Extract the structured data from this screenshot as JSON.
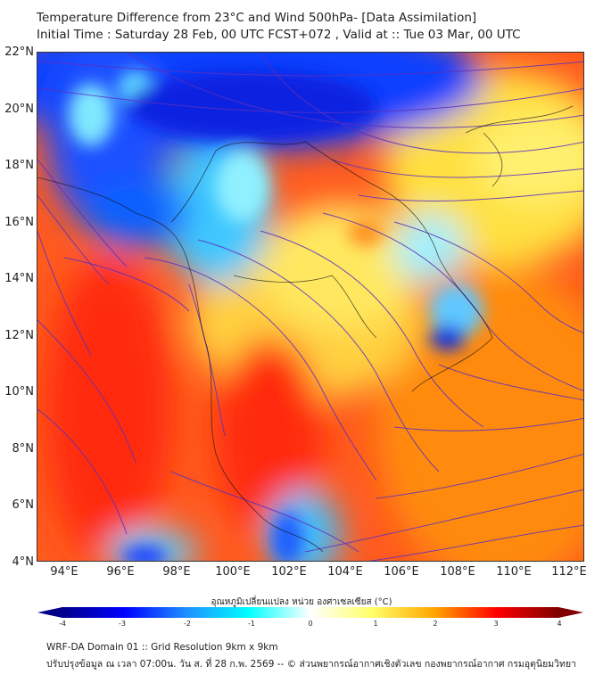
{
  "header": {
    "title": "Temperature Difference from 23°C and Wind 500hPa- [Data Assimilation]",
    "subtitle": "Initial Time : Saturday 28 Feb, 00 UTC FCST+072 , Valid at ::  Tue 03 Mar, 00 UTC"
  },
  "map": {
    "lat_labels": [
      "22°N",
      "20°N",
      "18°N",
      "16°N",
      "14°N",
      "12°N",
      "10°N",
      "8°N",
      "6°N",
      "4°N"
    ],
    "lon_labels": [
      "94°E",
      "96°E",
      "98°E",
      "100°E",
      "102°E",
      "104°E",
      "106°E",
      "108°E",
      "110°E",
      "112°E"
    ],
    "streamline_color": "#5a2fc0"
  },
  "colorbar": {
    "title": "อุณหภูมิเปลี่ยนแปลง หน่วย องศาเซลเซียส (°C)",
    "ticks": [
      "-4",
      "-3",
      "-2",
      "-1",
      "0",
      "1",
      "2",
      "3",
      "4"
    ],
    "colors": [
      "#00008b",
      "#0000ff",
      "#1e90ff",
      "#00ffff",
      "#ffffff",
      "#ffff66",
      "#ffa500",
      "#ff0000",
      "#800000"
    ]
  },
  "footer": {
    "line1": "WRF-DA Domain 01 :: Grid Resolution 9km x 9km",
    "line2": "ปรับปรุงข้อมูล ณ เวลา 07:00น. วัน ส. ที่ 28 ก.พ. 2569 -- © ส่วนพยากรณ์อากาศเชิงตัวเลข กองพยากรณ์อากาศ กรมอุตุนิยมวิทยา"
  }
}
